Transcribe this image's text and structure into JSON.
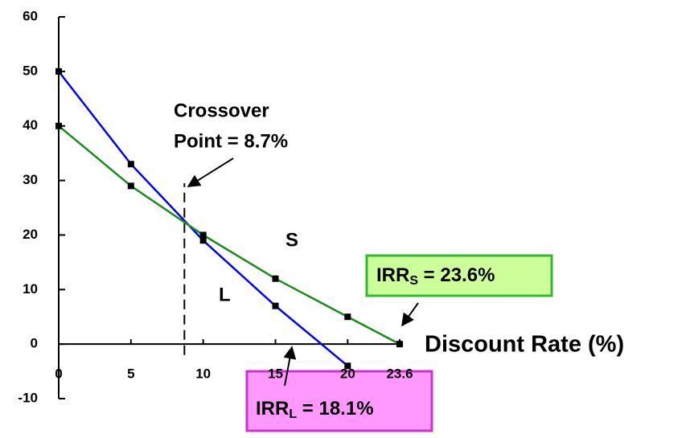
{
  "chart_data": {
    "type": "line",
    "x_label": "Discount Rate (%)",
    "xlim": [
      0,
      23.6
    ],
    "xticks": [
      0,
      5,
      10,
      15,
      20,
      23.6
    ],
    "ylim": [
      -10,
      60
    ],
    "yticks": [
      -10,
      0,
      10,
      20,
      30,
      40,
      50,
      60
    ],
    "series": [
      {
        "name": "L",
        "color": "#0000ff",
        "x": [
          0,
          5,
          10,
          15,
          20
        ],
        "values": [
          50,
          33,
          19,
          7,
          -4
        ]
      },
      {
        "name": "S",
        "color": "#1a8c1a",
        "x": [
          0,
          5,
          10,
          15,
          20,
          23.6
        ],
        "values": [
          40,
          29,
          20,
          12,
          5,
          0
        ]
      }
    ],
    "crossover": 8.7,
    "annotations": {
      "crossover_line1": "Crossover",
      "crossover_line2": "Point  =  8.7%",
      "irr_s": {
        "text": "IRR",
        "sub": "S",
        "rest": " = 23.6%"
      },
      "irr_l": {
        "text": "IRR",
        "sub": "L",
        "rest": " = 18.1%"
      }
    }
  }
}
